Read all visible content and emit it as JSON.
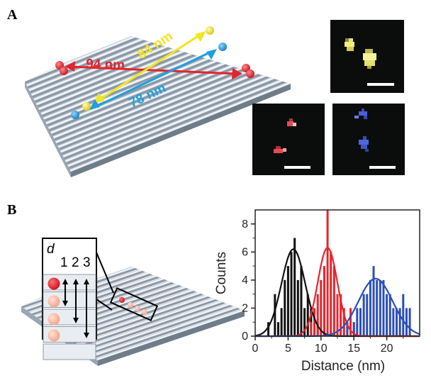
{
  "panels": {
    "a_label": "A",
    "b_label": "B"
  },
  "panel_a": {
    "distances": [
      {
        "label": "94 nm",
        "color": "#e4242c"
      },
      {
        "label": "84 nm",
        "color": "#f3e51e"
      },
      {
        "label": "78 nm",
        "color": "#1f9ee0"
      }
    ],
    "micrograph_colors": {
      "yellow": "#f2ef7a",
      "red": "#e44a55",
      "blue": "#4a5fd8"
    }
  },
  "panel_b": {
    "inset": {
      "d_label": "d",
      "positions": [
        "1",
        "2",
        "3"
      ]
    }
  },
  "chart_data": {
    "type": "bar",
    "xlabel": "Distance (nm)",
    "ylabel": "Counts",
    "xlim": [
      0,
      25
    ],
    "ylim": [
      0,
      9
    ],
    "xticks": [
      "0",
      "5",
      "10",
      "15",
      "20"
    ],
    "yticks": [
      "0",
      "2",
      "4",
      "6",
      "8"
    ],
    "series": [
      {
        "color": "#111111",
        "x": [
          2,
          3,
          3.5,
          4,
          4.5,
          5,
          5.5,
          6,
          6.5,
          7,
          7.5,
          8,
          8.5,
          9,
          9.5
        ],
        "values": [
          1,
          3,
          1,
          2,
          4,
          5,
          6,
          7,
          4,
          5,
          2,
          3,
          2,
          1,
          1
        ],
        "fit": {
          "mean": 5.8,
          "sd": 1.8,
          "amp": 6.2
        }
      },
      {
        "color": "#e4242c",
        "x": [
          8.5,
          9,
          9.5,
          10,
          10.5,
          11,
          11.5,
          12,
          12.5,
          13,
          13.5,
          14,
          14.5,
          15
        ],
        "values": [
          1,
          2,
          3,
          4,
          5,
          9,
          6,
          5,
          3,
          3,
          2,
          1,
          2,
          1
        ],
        "fit": {
          "mean": 11,
          "sd": 1.5,
          "amp": 6.3
        }
      },
      {
        "color": "#2b4eb8",
        "x": [
          14,
          15,
          15.5,
          16,
          16.5,
          17,
          17.5,
          18,
          18.5,
          19,
          19.5,
          20,
          20.5,
          21,
          21.5,
          22,
          22.5,
          23,
          23.5
        ],
        "values": [
          1,
          1,
          2,
          2,
          3,
          3,
          4,
          5,
          4,
          4,
          4,
          3,
          3,
          2,
          2,
          2,
          3,
          2,
          2
        ],
        "fit": {
          "mean": 18.3,
          "sd": 2.6,
          "amp": 4.1
        }
      }
    ]
  }
}
